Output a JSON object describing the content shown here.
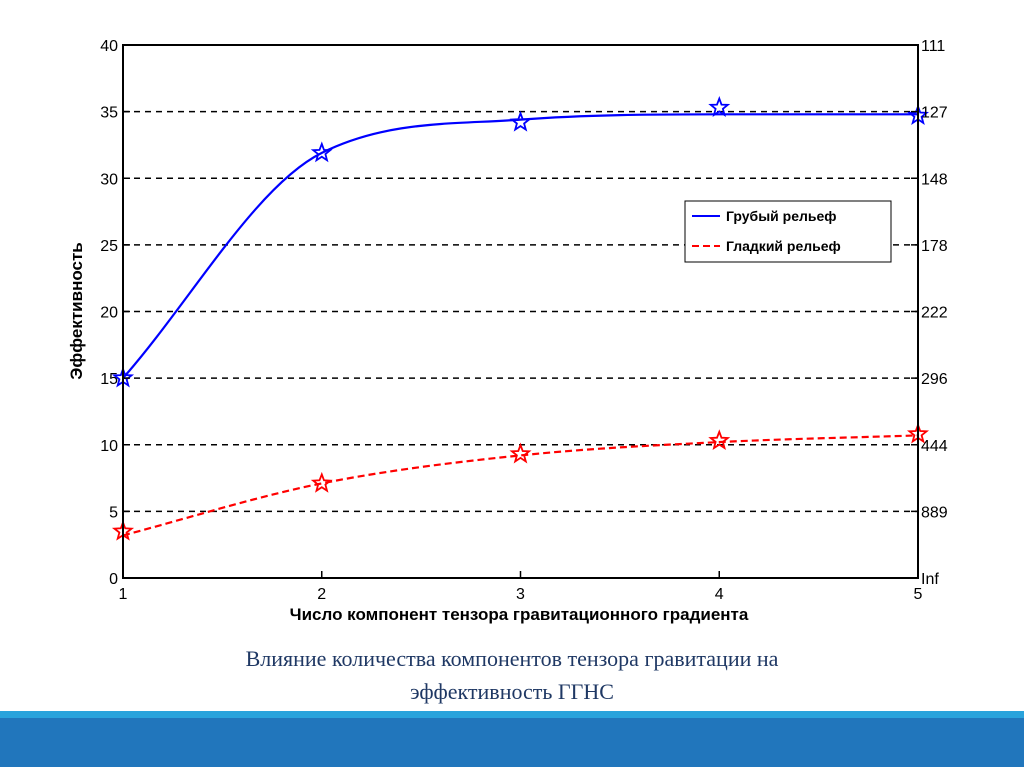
{
  "chart_data": {
    "type": "line",
    "xlabel": "Число компонент тензора гравитационного градиента",
    "ylabel": "Эффективность",
    "x": [
      1,
      2,
      3,
      4,
      5
    ],
    "xlim": [
      1,
      5
    ],
    "ylim": [
      0,
      40
    ],
    "xticks": [
      "1",
      "2",
      "3",
      "4",
      "5"
    ],
    "yticks": [
      "0",
      "5",
      "10",
      "15",
      "20",
      "25",
      "30",
      "35",
      "40"
    ],
    "yticks_right": [
      "Inf",
      "889",
      "444",
      "296",
      "222",
      "178",
      "148",
      "127",
      "111"
    ],
    "grid": "horizontal dashed",
    "legend_position": "top-right",
    "series": [
      {
        "name": "Грубый рельеф",
        "color": "#0000ff",
        "line_style": "solid",
        "marker": "star",
        "values": [
          15,
          31.9,
          34.2,
          35.3,
          34.7
        ],
        "curve_values": [
          15,
          31.9,
          34.4,
          34.8,
          34.8
        ]
      },
      {
        "name": "Гладкий рельеф",
        "color": "#ff0000",
        "line_style": "dashed",
        "marker": "star",
        "values": [
          3.5,
          7.1,
          9.3,
          10.3,
          10.8
        ],
        "curve_values": [
          3.2,
          7.1,
          9.2,
          10.2,
          10.7
        ]
      }
    ]
  },
  "caption": {
    "line1": "Влияние количества компонентов тензора гравитации на",
    "line2": "эффективность ГГНС"
  }
}
